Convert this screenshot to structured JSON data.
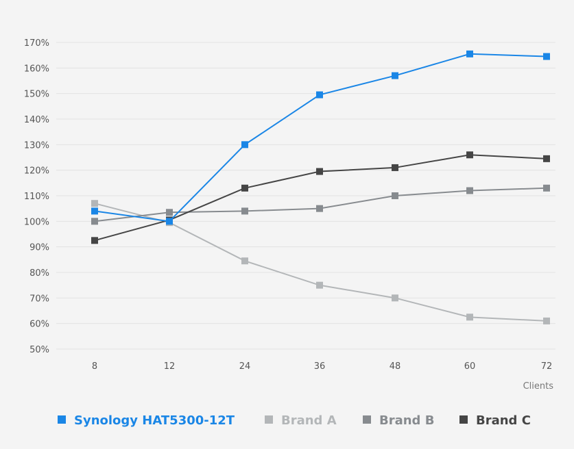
{
  "chart_data": {
    "type": "line",
    "categories": [
      "8",
      "12",
      "24",
      "36",
      "48",
      "60",
      "72"
    ],
    "xlabel": "Clients",
    "ylabel": "",
    "ylim": [
      50,
      170
    ],
    "yticks": [
      "50%",
      "60%",
      "70%",
      "80%",
      "90%",
      "100%",
      "110%",
      "120%",
      "130%",
      "140%",
      "150%",
      "160%",
      "170%"
    ],
    "grid": true,
    "legend_position": "bottom",
    "series": [
      {
        "name": "Synology HAT5300-12T",
        "color": "#1a86e6",
        "values": [
          104,
          100,
          130,
          149.5,
          157,
          165.5,
          164.5
        ]
      },
      {
        "name": "Brand A",
        "color": "#b3b6b8",
        "values": [
          107,
          99.5,
          84.5,
          75,
          70,
          62.5,
          61
        ]
      },
      {
        "name": "Brand B",
        "color": "#878b8f",
        "values": [
          100,
          103.5,
          104,
          105,
          110,
          112,
          113
        ]
      },
      {
        "name": "Brand C",
        "color": "#454545",
        "values": [
          92.5,
          100.5,
          113,
          119.5,
          121,
          126,
          124.5
        ]
      }
    ]
  }
}
